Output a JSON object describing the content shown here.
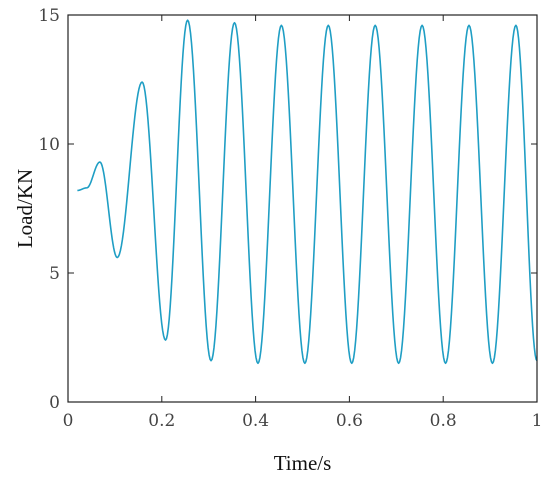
{
  "chart_data": {
    "type": "line",
    "title": "",
    "xlabel": "Time/s",
    "ylabel": "Load/KN",
    "xlim": [
      0,
      1
    ],
    "ylim": [
      0,
      15
    ],
    "x_ticks": [
      0,
      0.2,
      0.4,
      0.6,
      0.8,
      1
    ],
    "x_tick_labels": [
      "0",
      "0.2",
      "0.4",
      "0.6",
      "0.8",
      "1"
    ],
    "y_ticks": [
      0,
      5,
      10,
      15
    ],
    "y_tick_labels": [
      "0",
      "5",
      "10",
      "15"
    ],
    "grid": false,
    "line_color": "#1f9ec4",
    "series": [
      {
        "x": [
          0.02,
          0.04,
          0.068,
          0.105,
          0.158,
          0.208,
          0.255,
          0.305,
          0.355,
          0.405,
          0.455,
          0.505,
          0.555,
          0.605,
          0.655,
          0.705,
          0.755,
          0.805,
          0.855,
          0.905,
          0.955,
          1.0
        ],
        "y": [
          8.2,
          8.3,
          9.3,
          5.6,
          12.4,
          2.4,
          14.8,
          1.6,
          14.7,
          1.5,
          14.6,
          1.5,
          14.6,
          1.5,
          14.6,
          1.5,
          14.6,
          1.5,
          14.6,
          1.5,
          14.6,
          1.6
        ]
      }
    ]
  }
}
